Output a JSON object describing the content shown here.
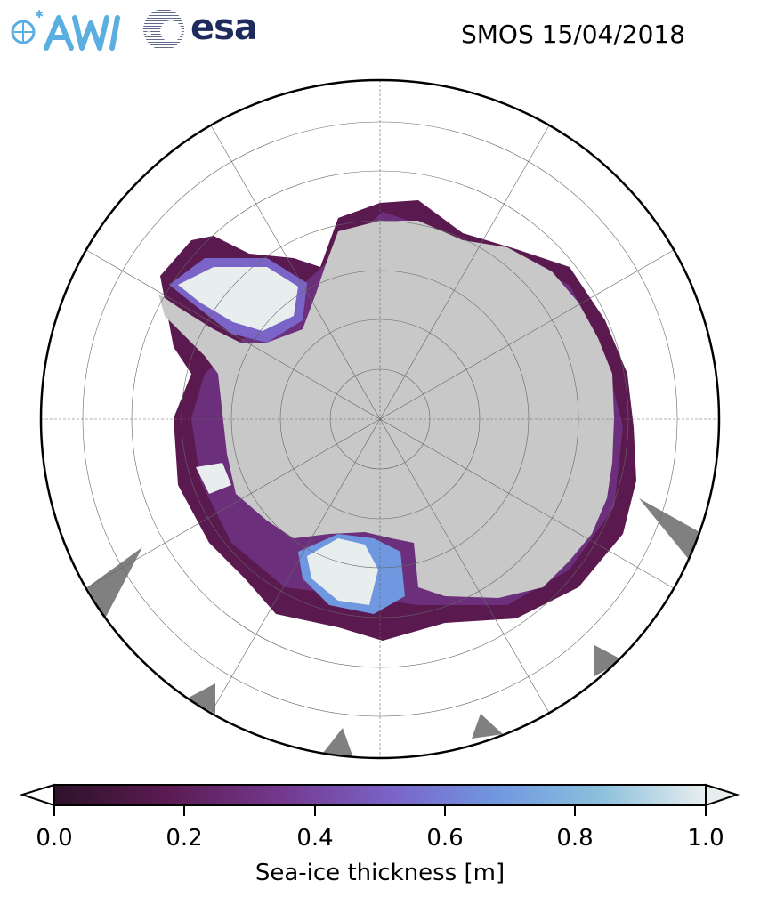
{
  "header": {
    "title": "SMOS 15/04/2018",
    "logos": [
      "AWI",
      "esa"
    ]
  },
  "map": {
    "projection": "south-polar-stereographic",
    "region": "Antarctica",
    "colors": {
      "land": "#c8c8c8",
      "nodata": "#808080",
      "ocean": "#ffffff"
    }
  },
  "colorbar": {
    "label": "Sea-ice thickness [m]",
    "ticks": [
      "0.0",
      "0.2",
      "0.4",
      "0.6",
      "0.8",
      "1.0"
    ],
    "range": [
      0.0,
      1.0
    ],
    "extend": "both",
    "colormap": [
      "#2d1229",
      "#5a1a50",
      "#74398f",
      "#7a64c8",
      "#7098e0",
      "#8cc0dc",
      "#e8eeee"
    ]
  }
}
